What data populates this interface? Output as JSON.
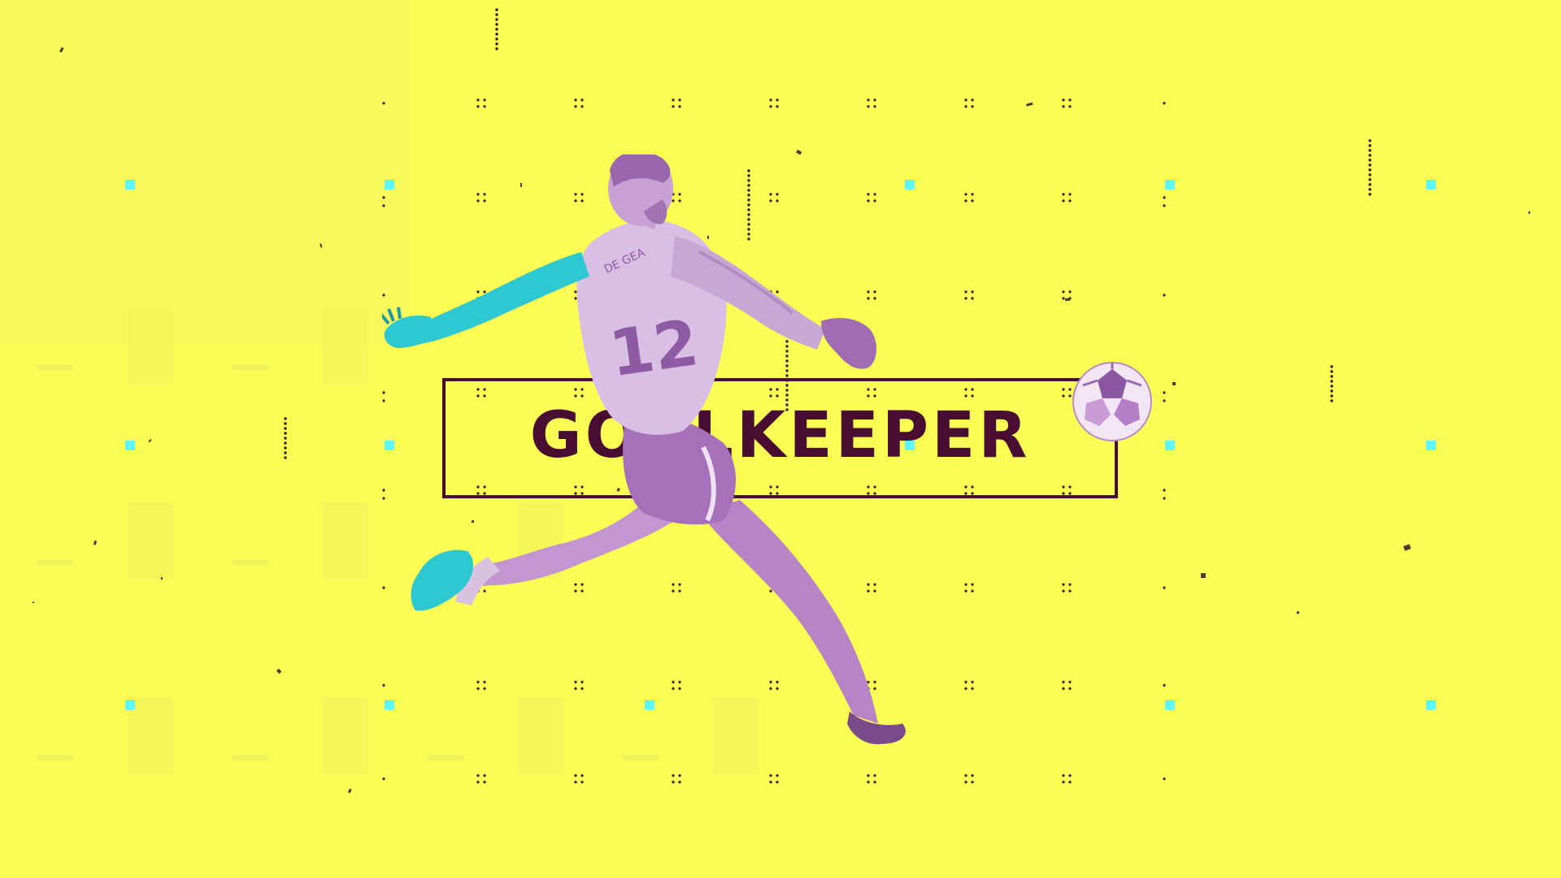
{
  "scene": {
    "title": "GOALKEEPER",
    "jersey_number": "12",
    "jersey_name": "DE GEA"
  },
  "colors": {
    "background": "#fbfd54",
    "title": "#4a0d32",
    "kit_tint": "#b57fc7",
    "glove_tint": "#2ec8d2",
    "accent_square": "#5ff5ff",
    "dots": "#3c1a2a"
  },
  "icons": {
    "player": "goalkeeper-figure",
    "ball": "football"
  }
}
